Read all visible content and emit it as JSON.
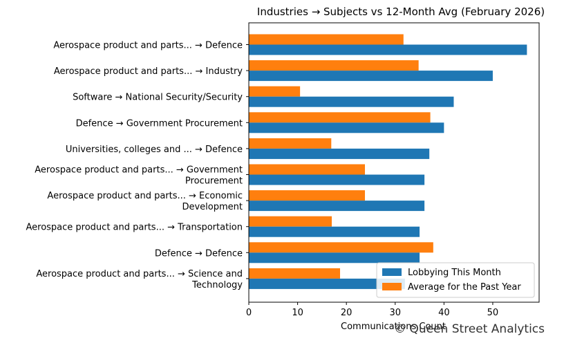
{
  "chart_data": {
    "type": "bar",
    "orientation": "horizontal",
    "title": "Industries → Subjects vs 12-Month Avg (February 2026)",
    "xlabel": "Communications Count",
    "ylabel": "",
    "xlim": [
      0,
      59.5
    ],
    "xticks": [
      0,
      10,
      20,
      30,
      40,
      50
    ],
    "grid": false,
    "legend_position": "lower-right",
    "categories": [
      [
        "Aerospace product and parts... → Defence"
      ],
      [
        "Aerospace product and parts... → Industry"
      ],
      [
        "Software → National Security/Security"
      ],
      [
        "Defence → Government Procurement"
      ],
      [
        "Universities, colleges and ... → Defence"
      ],
      [
        "Aerospace product and parts... → Government",
        "Procurement"
      ],
      [
        "Aerospace product and parts... → Economic",
        "Development"
      ],
      [
        "Aerospace product and parts... → Transportation"
      ],
      [
        "Defence → Defence"
      ],
      [
        "Aerospace product and parts... → Science and",
        "Technology"
      ]
    ],
    "series": [
      {
        "name": "Lobbying This Month",
        "color": "#1f77b4",
        "values": [
          57,
          50,
          42,
          40,
          37,
          36,
          36,
          35,
          35,
          32
        ]
      },
      {
        "name": "Average for the Past Year",
        "color": "#ff7f0e",
        "values": [
          31.7,
          34.8,
          10.5,
          37.2,
          16.9,
          23.8,
          23.8,
          17.0,
          37.8,
          18.7
        ]
      }
    ]
  },
  "watermark": "© Queen Street Analytics"
}
